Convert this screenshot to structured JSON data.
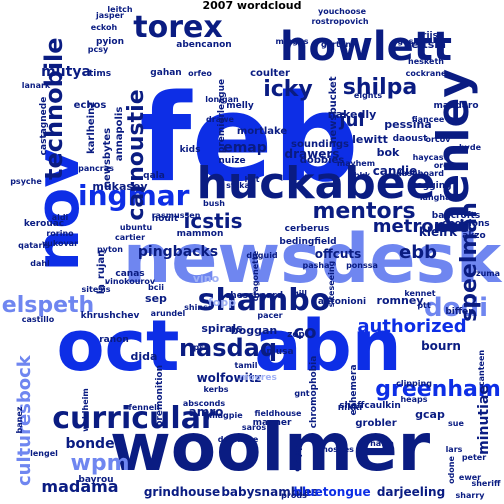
{
  "title": "2007 wordcloud",
  "palette": {
    "navy": "#0a1c82",
    "blue": "#0d2ee6",
    "light": "#6f86f0",
    "pale": "#9fb0f5"
  },
  "words": [
    {
      "text": "feb",
      "color": "blue"
    },
    {
      "text": "newsdesk",
      "color": "light"
    },
    {
      "text": "woolmer",
      "color": "navy"
    },
    {
      "text": "oct",
      "color": "blue"
    },
    {
      "text": "abn",
      "color": "blue"
    },
    {
      "text": "huckabee",
      "color": "navy"
    },
    {
      "text": "howlett",
      "color": "navy"
    },
    {
      "text": "torex",
      "color": "navy"
    },
    {
      "text": "nov",
      "color": "blue"
    },
    {
      "text": "henley",
      "color": "navy"
    },
    {
      "text": "shambo",
      "color": "navy"
    },
    {
      "text": "curricular",
      "color": "navy"
    },
    {
      "text": "ingmar",
      "color": "blue"
    },
    {
      "text": "technobile",
      "color": "navy"
    },
    {
      "text": "carnoustie",
      "color": "navy"
    },
    {
      "text": "mentors",
      "color": "navy"
    },
    {
      "text": "icstis",
      "color": "navy"
    },
    {
      "text": "greenham",
      "color": "blue"
    },
    {
      "text": "elspeth",
      "color": "light"
    },
    {
      "text": "dodi",
      "color": "light"
    },
    {
      "text": "nasdaq",
      "color": "navy"
    },
    {
      "text": "wpm",
      "color": "light"
    },
    {
      "text": "speelman",
      "color": "navy"
    },
    {
      "text": "authorized",
      "color": "blue"
    },
    {
      "text": "shilpa",
      "color": "navy"
    },
    {
      "text": "icky",
      "color": "navy"
    },
    {
      "text": "ebb",
      "color": "navy"
    },
    {
      "text": "culturesbock",
      "color": "light"
    },
    {
      "text": "metronet",
      "color": "navy"
    },
    {
      "text": "jul",
      "color": "navy"
    },
    {
      "text": "madama",
      "color": "navy"
    },
    {
      "text": "bonde",
      "color": "navy"
    },
    {
      "text": "mutya",
      "color": "navy"
    },
    {
      "text": "emap",
      "color": "navy"
    },
    {
      "text": "pingbacks",
      "color": "navy"
    },
    {
      "text": "grindhouse",
      "color": "navy"
    },
    {
      "text": "babysnambles",
      "color": "navy"
    },
    {
      "text": "bluetongue",
      "color": "blue"
    },
    {
      "text": "darjeeling",
      "color": "navy"
    },
    {
      "text": "wolfowitz",
      "color": "navy"
    },
    {
      "text": "offcuts",
      "color": "navy"
    },
    {
      "text": "co",
      "color": "navy"
    },
    {
      "text": "minutiae",
      "color": "navy"
    },
    {
      "text": "amro",
      "color": "navy"
    },
    {
      "text": "drawers",
      "color": "navy"
    },
    {
      "text": "mukasey",
      "color": "navy"
    },
    {
      "text": "newsbytes",
      "color": "navy"
    },
    {
      "text": "annapolis",
      "color": "navy"
    },
    {
      "text": "karlheinz",
      "color": "navy"
    },
    {
      "text": "lewitt",
      "color": "navy"
    },
    {
      "text": "nakedly",
      "color": "navy"
    },
    {
      "text": "pessina",
      "color": "navy"
    },
    {
      "text": "bok",
      "color": "navy"
    },
    {
      "text": "candie",
      "color": "navy"
    },
    {
      "text": "kleirk",
      "color": "navy"
    },
    {
      "text": "romney",
      "color": "navy"
    },
    {
      "text": "bourn",
      "color": "navy"
    },
    {
      "text": "gcap",
      "color": "navy"
    },
    {
      "text": "sep",
      "color": "navy"
    },
    {
      "text": "dida",
      "color": "navy"
    },
    {
      "text": "spirals",
      "color": "navy"
    },
    {
      "text": "boggan",
      "color": "navy"
    },
    {
      "text": "manner",
      "color": "navy"
    },
    {
      "text": "abencanon",
      "color": "navy"
    },
    {
      "text": "gahan",
      "color": "navy"
    },
    {
      "text": "echos",
      "color": "navy"
    },
    {
      "text": "coulter",
      "color": "navy"
    },
    {
      "text": "yeltsin",
      "color": "navy"
    },
    {
      "text": "dobbies",
      "color": "navy"
    },
    {
      "text": "soundings",
      "color": "navy"
    },
    {
      "text": "mortlake",
      "color": "navy"
    },
    {
      "text": "newsbucket",
      "color": "navy"
    },
    {
      "text": "premierleague",
      "color": "navy"
    },
    {
      "text": "castagnede",
      "color": "navy"
    },
    {
      "text": "chromophobia",
      "color": "navy"
    },
    {
      "text": "premonition",
      "color": "navy"
    },
    {
      "text": "khrushchev",
      "color": "navy"
    },
    {
      "text": "kids",
      "color": "navy"
    },
    {
      "text": "cerberus",
      "color": "navy"
    },
    {
      "text": "bedingfield",
      "color": "navy"
    },
    {
      "text": "antonioni",
      "color": "navy"
    },
    {
      "text": "chessboard",
      "color": "navy"
    },
    {
      "text": "biffen",
      "color": "navy"
    },
    {
      "text": "sheffcaulkin",
      "color": "navy"
    },
    {
      "text": "grobler",
      "color": "navy"
    },
    {
      "text": "melly",
      "color": "navy"
    },
    {
      "text": "mandaro",
      "color": "navy"
    },
    {
      "text": "riis",
      "color": "navy"
    },
    {
      "text": "daoust",
      "color": "navy"
    },
    {
      "text": "pyion",
      "color": "navy"
    },
    {
      "text": "tims",
      "color": "navy"
    },
    {
      "text": "hoult",
      "color": "navy"
    },
    {
      "text": "qala",
      "color": "navy"
    },
    {
      "text": "nuize",
      "color": "navy"
    },
    {
      "text": "vino",
      "color": "pale"
    },
    {
      "text": "canas",
      "color": "navy"
    },
    {
      "text": "fopp",
      "color": "pale"
    },
    {
      "text": "zep",
      "color": "navy"
    },
    {
      "text": "musa",
      "color": "navy"
    },
    {
      "text": "ranon",
      "color": "navy"
    },
    {
      "text": "moores",
      "color": "pale"
    },
    {
      "text": "ephemera",
      "color": "navy"
    },
    {
      "text": "nikki",
      "color": "navy"
    },
    {
      "text": "clapp",
      "color": "navy"
    },
    {
      "text": "bayrou",
      "color": "navy"
    },
    {
      "text": "kerouac",
      "color": "navy"
    },
    {
      "text": "mammon",
      "color": "navy"
    },
    {
      "text": "tagging",
      "color": "navy"
    },
    {
      "text": "akzo",
      "color": "navy"
    },
    {
      "text": "bancrofts",
      "color": "navy"
    },
    {
      "text": "decisions",
      "color": "navy"
    },
    {
      "text": "jasper",
      "color": "navy"
    },
    {
      "text": "lanark",
      "color": "navy"
    },
    {
      "text": "pancras",
      "color": "navy"
    },
    {
      "text": "orfeo",
      "color": "navy"
    },
    {
      "text": "pcsy",
      "color": "navy"
    },
    {
      "text": "cockrane",
      "color": "navy"
    },
    {
      "text": "garton",
      "color": "navy"
    },
    {
      "text": "hesketh",
      "color": "navy"
    },
    {
      "text": "clipping",
      "color": "navy"
    },
    {
      "text": "canteen",
      "color": "navy"
    },
    {
      "text": "odone",
      "color": "navy"
    },
    {
      "text": "drawe",
      "color": "navy"
    },
    {
      "text": "sharry",
      "color": "navy"
    },
    {
      "text": "dashboard",
      "color": "navy"
    },
    {
      "text": "youchoose",
      "color": "navy"
    },
    {
      "text": "rostropovich",
      "color": "navy"
    },
    {
      "text": "banez",
      "color": "navy"
    },
    {
      "text": "psyche",
      "color": "navy"
    },
    {
      "text": "eckoh",
      "color": "navy"
    },
    {
      "text": "leitch",
      "color": "navy"
    },
    {
      "text": "mingus",
      "color": "navy"
    },
    {
      "text": "gosk",
      "color": "navy"
    },
    {
      "text": "rasmussen",
      "color": "navy"
    },
    {
      "text": "ponssa",
      "color": "navy"
    },
    {
      "text": "rorino",
      "color": "navy"
    },
    {
      "text": "lengel",
      "color": "navy"
    },
    {
      "text": "absconds",
      "color": "navy"
    },
    {
      "text": "magpie",
      "color": "navy"
    },
    {
      "text": "prods",
      "color": "navy"
    },
    {
      "text": "hot",
      "color": "navy"
    },
    {
      "text": "vukovar",
      "color": "navy"
    },
    {
      "text": "kerbs",
      "color": "navy"
    },
    {
      "text": "nafta",
      "color": "navy"
    },
    {
      "text": "gill",
      "color": "navy"
    },
    {
      "text": "sfcka",
      "color": "navy"
    },
    {
      "text": "gnt",
      "color": "navy"
    },
    {
      "text": "noshes",
      "color": "navy"
    },
    {
      "text": "dragonette",
      "color": "navy"
    },
    {
      "text": "pacer",
      "color": "navy"
    },
    {
      "text": "waldheim",
      "color": "navy"
    },
    {
      "text": "duguid",
      "color": "navy"
    },
    {
      "text": "heaps",
      "color": "navy"
    },
    {
      "text": "shins",
      "color": "navy"
    },
    {
      "text": "eights",
      "color": "navy"
    },
    {
      "text": "langhan",
      "color": "navy"
    },
    {
      "text": "cartier",
      "color": "navy"
    },
    {
      "text": "bcii",
      "color": "navy"
    },
    {
      "text": "fennell",
      "color": "navy"
    },
    {
      "text": "sitesis",
      "color": "navy"
    },
    {
      "text": "siteseeing",
      "color": "navy"
    },
    {
      "text": "hyde",
      "color": "navy"
    },
    {
      "text": "saros",
      "color": "navy"
    },
    {
      "text": "fiancee",
      "color": "navy"
    },
    {
      "text": "kennet",
      "color": "navy"
    },
    {
      "text": "bush",
      "color": "navy"
    },
    {
      "text": "arundel",
      "color": "navy"
    },
    {
      "text": "ptt",
      "color": "navy"
    },
    {
      "text": "sue",
      "color": "navy"
    },
    {
      "text": "psl",
      "color": "navy"
    },
    {
      "text": "vinokourov",
      "color": "navy"
    },
    {
      "text": "mayhem",
      "color": "navy"
    },
    {
      "text": "pyton",
      "color": "navy"
    },
    {
      "text": "lonigan",
      "color": "navy"
    },
    {
      "text": "dahl",
      "color": "navy"
    },
    {
      "text": "castillo",
      "color": "navy"
    },
    {
      "text": "la_rujan",
      "color": "navy"
    },
    {
      "text": "qataris",
      "color": "navy"
    },
    {
      "text": "ubuntu",
      "color": "navy"
    },
    {
      "text": "dalliance",
      "color": "navy"
    },
    {
      "text": "lars",
      "color": "navy"
    },
    {
      "text": "peter",
      "color": "navy"
    },
    {
      "text": "ewer",
      "color": "navy"
    },
    {
      "text": "haycast",
      "color": "navy"
    },
    {
      "text": "oreo",
      "color": "navy"
    },
    {
      "text": "bkk",
      "color": "navy"
    },
    {
      "text": "orcov",
      "color": "navy"
    },
    {
      "text": "fieldhouse",
      "color": "navy"
    },
    {
      "text": "aldi",
      "color": "navy"
    },
    {
      "text": "zuma",
      "color": "navy"
    },
    {
      "text": "sheriff",
      "color": "navy"
    },
    {
      "text": "pasha",
      "color": "navy"
    },
    {
      "text": "tamil",
      "color": "navy"
    }
  ]
}
